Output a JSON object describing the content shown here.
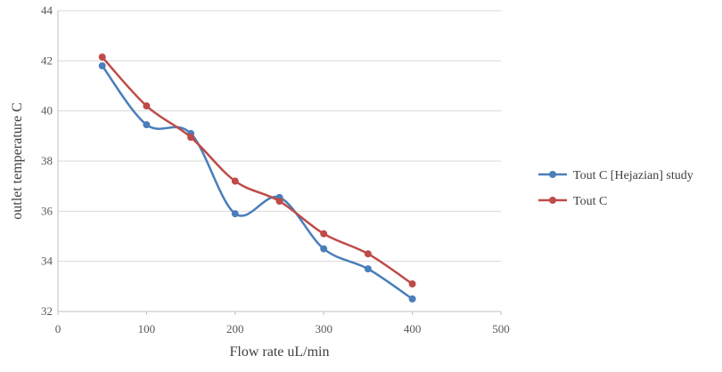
{
  "chart_data": {
    "type": "line",
    "smooth": true,
    "title": "",
    "xlabel": "Flow rate uL/min",
    "ylabel": "outlet temperature C",
    "xlim": [
      0,
      500
    ],
    "ylim": [
      32,
      44
    ],
    "x_ticks": [
      "0",
      "100",
      "200",
      "300",
      "400",
      "500"
    ],
    "y_ticks": [
      "32",
      "34",
      "36",
      "38",
      "40",
      "42",
      "44"
    ],
    "grid": "horizontal",
    "legend_position": "right",
    "x": [
      50,
      100,
      150,
      200,
      250,
      300,
      350,
      400
    ],
    "series": [
      {
        "name": "Tout C [Hejazian] study",
        "color": "#4a7ebb",
        "values": [
          41.8,
          39.45,
          39.1,
          35.9,
          36.55,
          34.5,
          33.7,
          32.5
        ]
      },
      {
        "name": "Tout C",
        "color": "#be4b48",
        "values": [
          42.15,
          40.2,
          38.95,
          37.2,
          36.4,
          35.1,
          34.3,
          33.1
        ]
      }
    ]
  }
}
